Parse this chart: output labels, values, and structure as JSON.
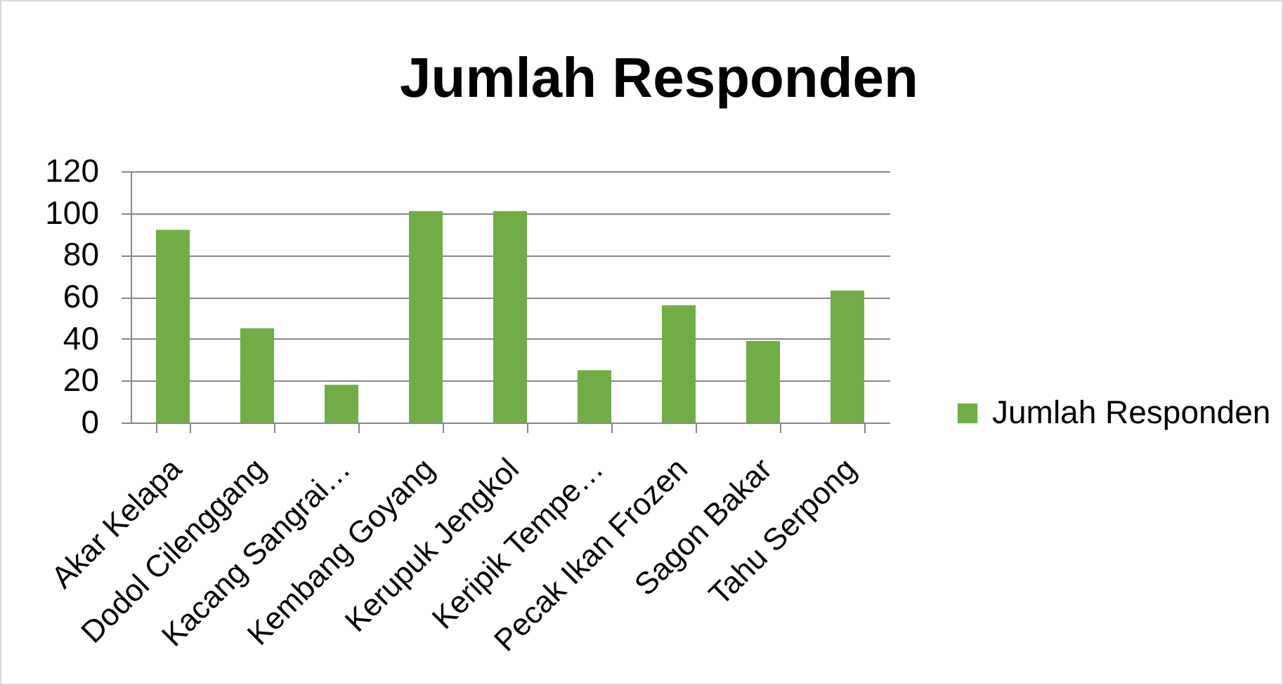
{
  "chart_data": {
    "type": "bar",
    "title": "Jumlah Responden",
    "categories": [
      "Akar Kelapa",
      "Dodol Cilenggang",
      "Kacang Sangrai…",
      "Kembang Goyang",
      "Kerupuk Jengkol",
      "Keripik Tempe…",
      "Pecak Ikan Frozen",
      "Sagon Bakar",
      "Tahu Serpong"
    ],
    "series": [
      {
        "name": "Jumlah Responden",
        "color": "#70ad47",
        "values": [
          92,
          45,
          18,
          101,
          101,
          25,
          56,
          39,
          63
        ]
      }
    ],
    "ylim": [
      0,
      120
    ],
    "yticks": [
      0,
      20,
      40,
      60,
      80,
      100,
      120
    ],
    "grid": "y",
    "legend": "right"
  }
}
